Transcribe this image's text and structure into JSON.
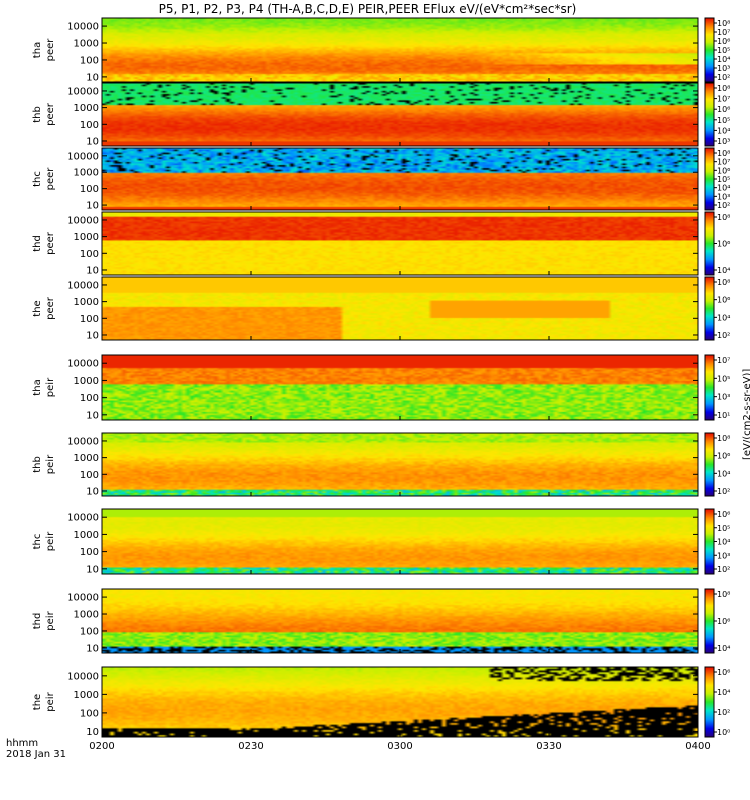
{
  "title": "P5, P1, P2, P3, P4 (TH-A,B,C,D,E) PEIR,PEER EFlux eV/(eV*cm²*sec*sr)",
  "time_axis": {
    "label_line1": "hhmm",
    "label_line2": "2018 Jan 31"
  },
  "colorbar_label": "[eV/(cm2-s-sr-eV)]",
  "chart_data": {
    "type": "heatmap",
    "xlabel": "hhmm",
    "x_ticks": [
      "0200",
      "0230",
      "0300",
      "0330",
      "0400"
    ],
    "xlim": [
      "0200",
      "0400"
    ],
    "y_scale": "log",
    "ylim": [
      5,
      30000
    ],
    "y_ticks": [
      10,
      100,
      1000,
      10000
    ],
    "y_tick_labels": [
      "10",
      "100",
      "1000",
      "10000"
    ],
    "colormap": "rainbow (blue-green-yellow-red)",
    "panels": [
      {
        "ylabel_1": "tha",
        "ylabel_2": "peer",
        "cb_ticks": [
          "10⁸",
          "10⁷",
          "10⁶",
          "10⁵",
          "10⁴",
          "10³",
          "10²"
        ],
        "profile": "electron-hot"
      },
      {
        "ylabel_1": "thb",
        "ylabel_2": "peer",
        "cb_ticks": [
          "10⁸",
          "10⁷",
          "10⁶",
          "10⁵",
          "10⁴",
          "10³"
        ],
        "profile": "electron-band"
      },
      {
        "ylabel_1": "thc",
        "ylabel_2": "peer",
        "cb_ticks": [
          "10⁸",
          "10⁷",
          "10⁶",
          "10⁵",
          "10⁴",
          "10³",
          "10²"
        ],
        "profile": "electron-noisy"
      },
      {
        "ylabel_1": "thd",
        "ylabel_2": "peer",
        "cb_ticks": [
          "10⁸",
          "10⁶",
          "10⁴"
        ],
        "profile": "electron-red"
      },
      {
        "ylabel_1": "the",
        "ylabel_2": "peer",
        "cb_ticks": [
          "10⁸",
          "10⁶",
          "10⁴",
          "10²"
        ],
        "profile": "electron-the"
      },
      {
        "ylabel_1": "tha",
        "ylabel_2": "peir",
        "cb_ticks": [
          "10⁷",
          "10⁵",
          "10³",
          "10¹"
        ],
        "profile": "ion-tha"
      },
      {
        "ylabel_1": "thb",
        "ylabel_2": "peir",
        "cb_ticks": [
          "10⁸",
          "10⁶",
          "10⁴",
          "10²"
        ],
        "profile": "ion-band"
      },
      {
        "ylabel_1": "thc",
        "ylabel_2": "peir",
        "cb_ticks": [
          "10⁶",
          "10⁵",
          "10⁴",
          "10³",
          "10²"
        ],
        "profile": "ion-band2"
      },
      {
        "ylabel_1": "thd",
        "ylabel_2": "peir",
        "cb_ticks": [
          "10⁸",
          "10⁶",
          "10⁴"
        ],
        "profile": "ion-thd"
      },
      {
        "ylabel_1": "the",
        "ylabel_2": "peir",
        "cb_ticks": [
          "10⁶",
          "10⁴",
          "10²",
          "10⁰"
        ],
        "profile": "ion-the"
      }
    ]
  }
}
